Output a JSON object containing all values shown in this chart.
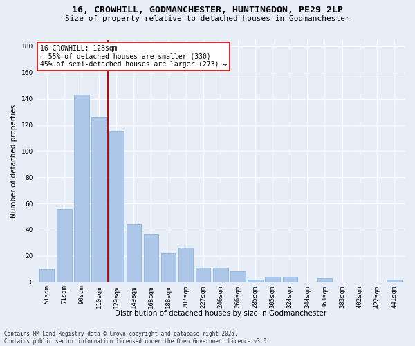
{
  "title_line1": "16, CROWHILL, GODMANCHESTER, HUNTINGDON, PE29 2LP",
  "title_line2": "Size of property relative to detached houses in Godmanchester",
  "xlabel": "Distribution of detached houses by size in Godmanchester",
  "ylabel": "Number of detached properties",
  "bar_color": "#aec6e8",
  "bar_edge_color": "#7ab0d8",
  "categories": [
    "51sqm",
    "71sqm",
    "90sqm",
    "110sqm",
    "129sqm",
    "149sqm",
    "168sqm",
    "188sqm",
    "207sqm",
    "227sqm",
    "246sqm",
    "266sqm",
    "285sqm",
    "305sqm",
    "324sqm",
    "344sqm",
    "363sqm",
    "383sqm",
    "402sqm",
    "422sqm",
    "441sqm"
  ],
  "values": [
    10,
    56,
    143,
    126,
    115,
    44,
    37,
    22,
    26,
    11,
    11,
    8,
    2,
    4,
    4,
    0,
    3,
    0,
    0,
    0,
    2
  ],
  "vline_x_idx": 3.5,
  "vline_color": "#cc0000",
  "annotation_text": "16 CROWHILL: 128sqm\n← 55% of detached houses are smaller (330)\n45% of semi-detached houses are larger (273) →",
  "ylim": [
    0,
    185
  ],
  "yticks": [
    0,
    20,
    40,
    60,
    80,
    100,
    120,
    140,
    160,
    180
  ],
  "bg_color": "#e8eef8",
  "grid_color": "#ffffff",
  "footer_line1": "Contains HM Land Registry data © Crown copyright and database right 2025.",
  "footer_line2": "Contains public sector information licensed under the Open Government Licence v3.0.",
  "title_fontsize": 9.5,
  "subtitle_fontsize": 8.0,
  "axis_label_fontsize": 7.5,
  "tick_fontsize": 6.5,
  "annotation_fontsize": 7.0,
  "footer_fontsize": 5.5
}
